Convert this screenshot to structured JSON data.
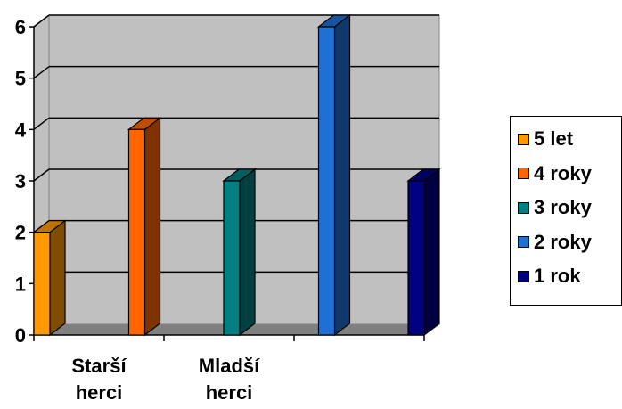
{
  "chart_data": {
    "type": "bar",
    "categories": [
      "Starší herci",
      "Mladší herci",
      ""
    ],
    "y_ticks": [
      "0",
      "1",
      "2",
      "3",
      "4",
      "5",
      "6"
    ],
    "ylim": [
      0,
      6
    ],
    "grid": true,
    "legend_position": "right",
    "series": [
      {
        "name": "5 let",
        "color": "#FF9900",
        "value": 2,
        "category": "Starší herci"
      },
      {
        "name": "4 roky",
        "color": "#FF6600",
        "value": 4,
        "category": "Starší herci"
      },
      {
        "name": "3 roky",
        "color": "#008080",
        "value": 3,
        "category": "Mladší herci"
      },
      {
        "name": "2 roky",
        "color": "#1F6FD4",
        "value": 6,
        "category": "Mladší herci"
      },
      {
        "name": "1 rok",
        "color": "#000080",
        "value": 3,
        "category": ""
      }
    ]
  }
}
